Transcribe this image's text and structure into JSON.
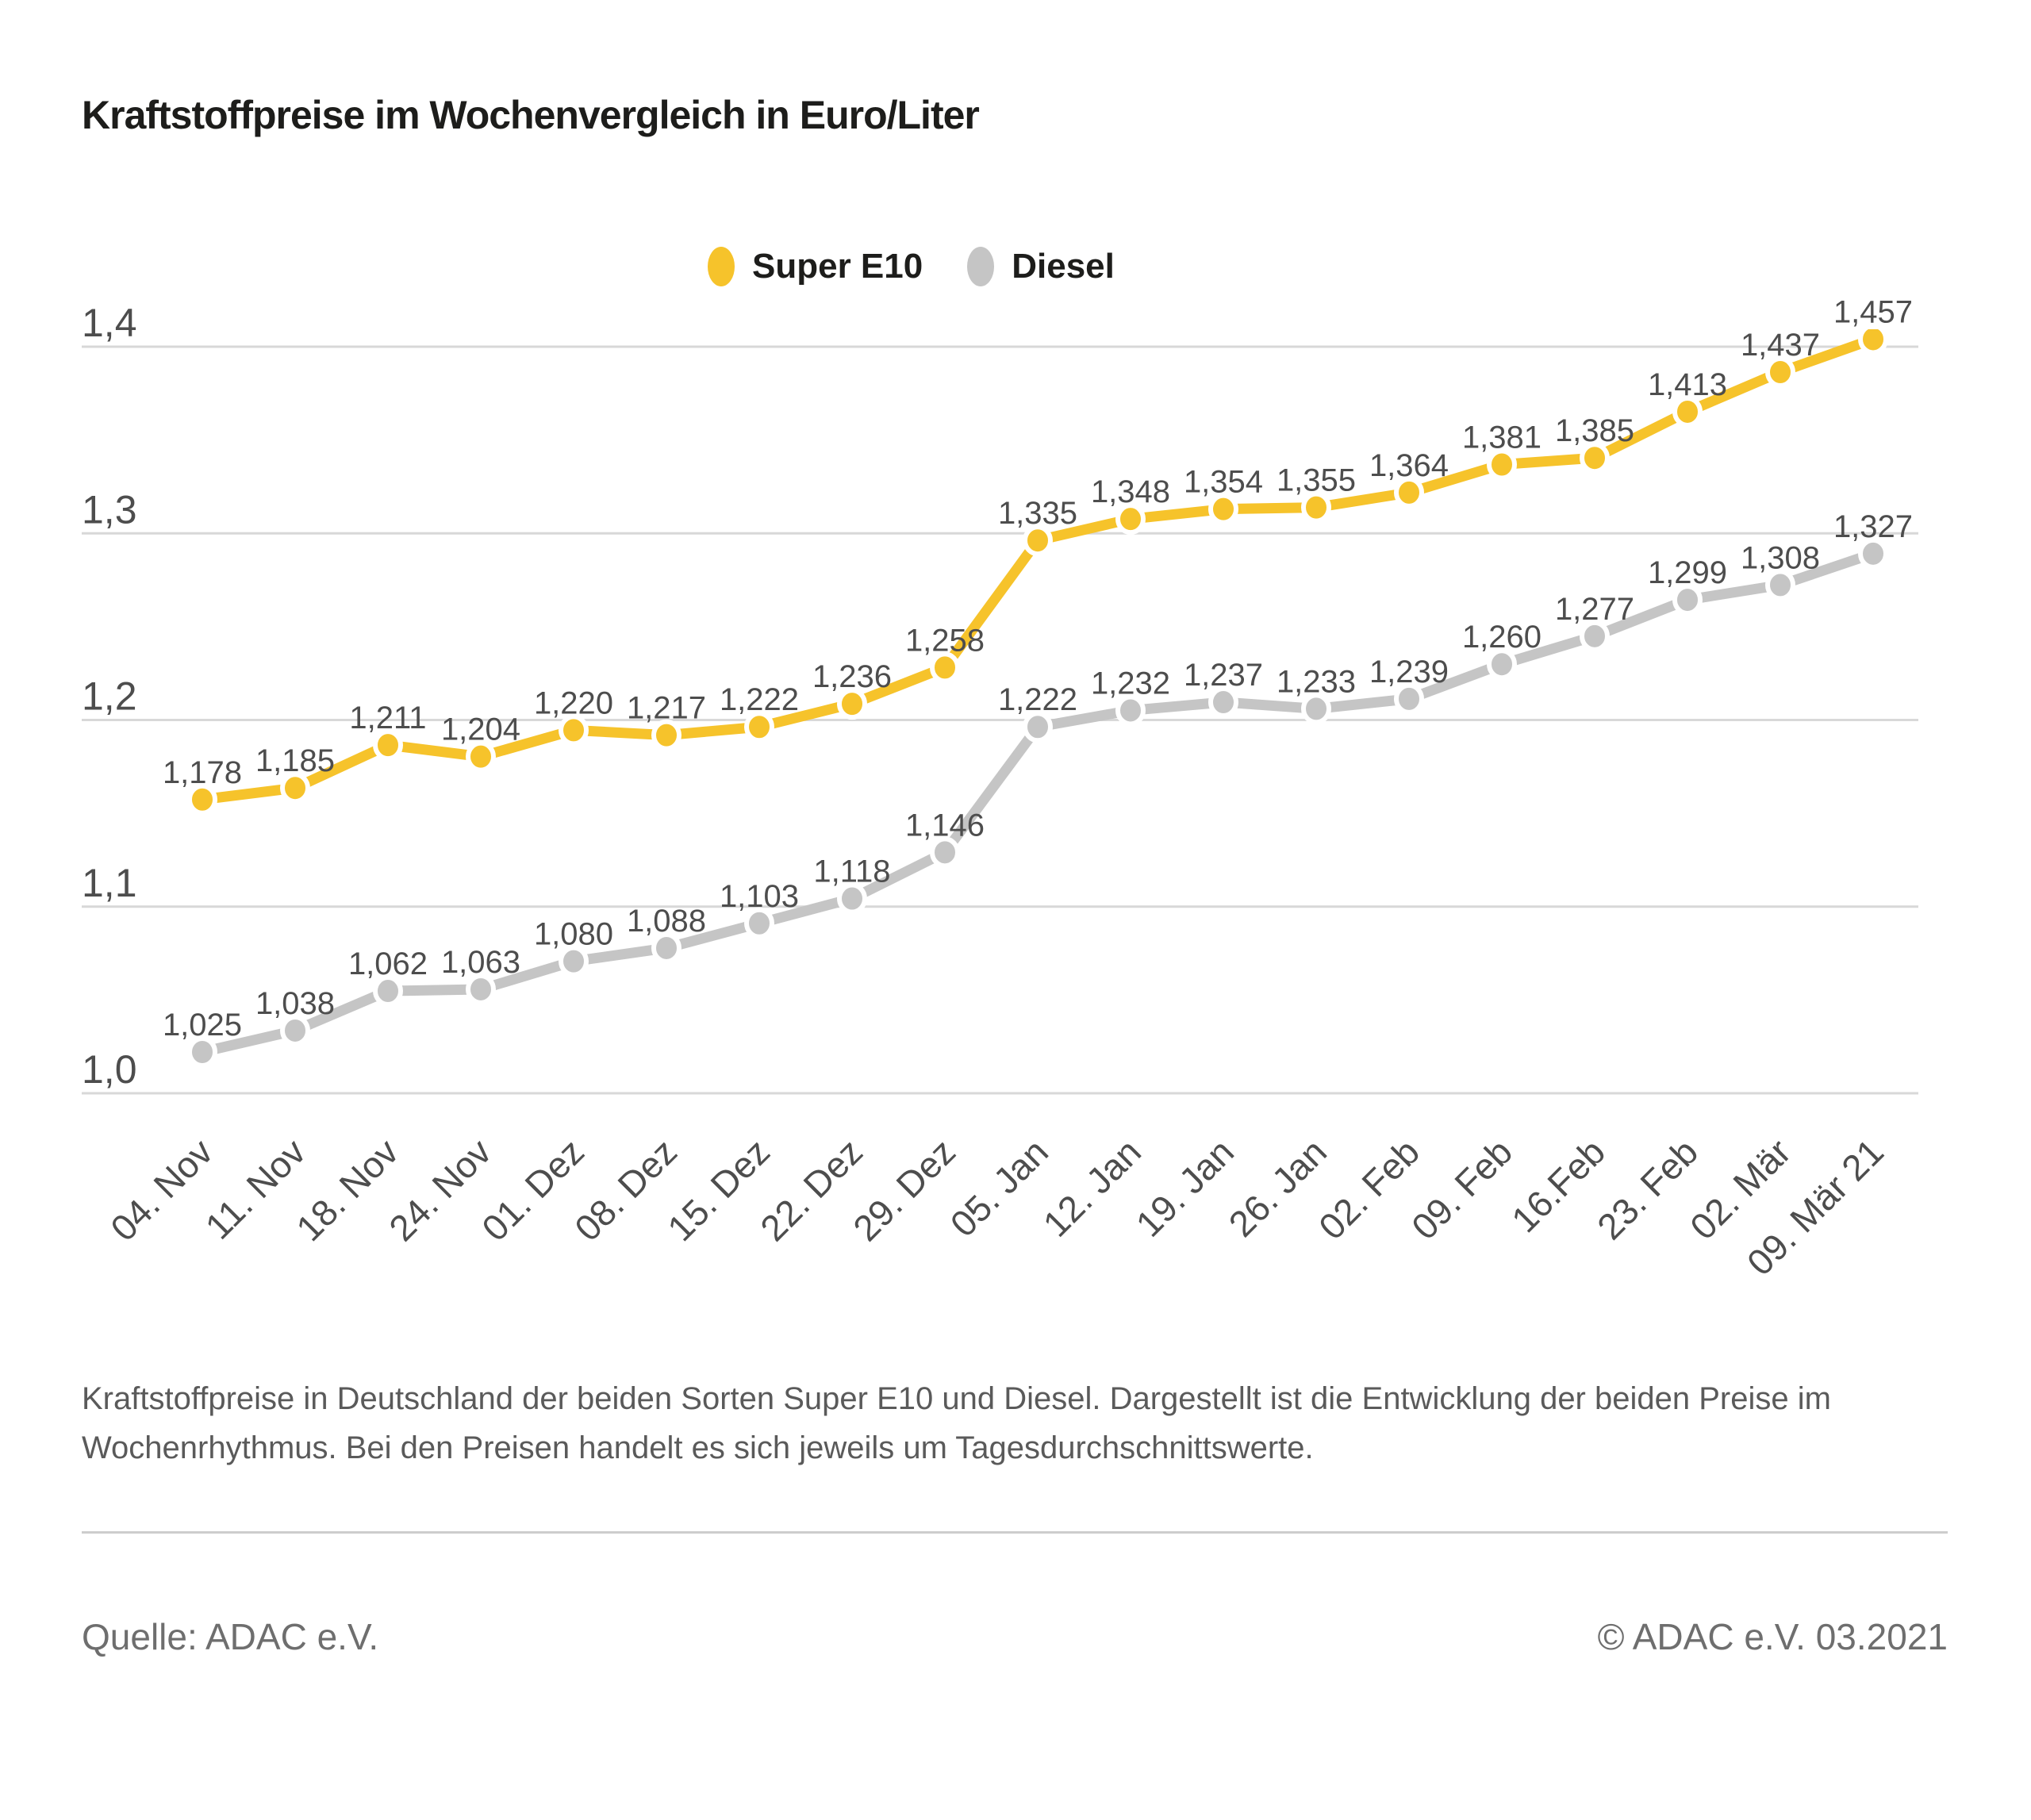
{
  "title": "Kraftstoffpreise im Wochenvergleich in Euro/Liter",
  "chart_data": {
    "type": "line",
    "title": "Kraftstoffpreise im Wochenvergleich in Euro/Liter",
    "unit": "Euro/Liter",
    "categories": [
      "04. Nov",
      "11. Nov",
      "18. Nov",
      "24. Nov",
      "01. Dez",
      "08. Dez",
      "15. Dez",
      "22. Dez",
      "29. Dez",
      "05. Jan",
      "12. Jan",
      "19. Jan",
      "26. Jan",
      "02. Feb",
      "09. Feb",
      "16.Feb",
      "23. Feb",
      "02. Mär",
      "09. Mär 21"
    ],
    "series": [
      {
        "name": "Super E10",
        "color": "#F6C32B",
        "values": [
          1.178,
          1.185,
          1.211,
          1.204,
          1.22,
          1.217,
          1.222,
          1.236,
          1.258,
          1.335,
          1.348,
          1.354,
          1.355,
          1.364,
          1.381,
          1.385,
          1.413,
          1.437,
          1.457
        ]
      },
      {
        "name": "Diesel",
        "color": "#C5C5C5",
        "values": [
          1.025,
          1.038,
          1.062,
          1.063,
          1.08,
          1.088,
          1.103,
          1.118,
          1.146,
          1.222,
          1.232,
          1.237,
          1.233,
          1.239,
          1.26,
          1.277,
          1.299,
          1.308,
          1.327
        ]
      }
    ],
    "yticks": {
      "values": [
        1.0,
        1.1,
        1.2,
        1.3,
        1.4
      ],
      "labels": [
        "1,0",
        "1,1",
        "1,2",
        "1,3",
        "1,4"
      ]
    },
    "ylim": [
      1.0,
      1.46
    ],
    "grid": true,
    "grid_color": "#D8D8D8",
    "label_color": "#4D4D4D",
    "legend_position": "top",
    "value_label_decimal": "comma"
  },
  "caption": {
    "line1": "Kraftstoffpreise in Deutschland der beiden Sorten Super E10 und Diesel. Dargestellt ist die Entwicklung der beiden Preise im",
    "line2": "Wochenrhythmus. Bei den Preisen handelt es sich jeweils um Tagesdurchschnittswerte."
  },
  "footer": {
    "source": "Quelle: ADAC e.V.",
    "copyright": "© ADAC e.V. 03.2021"
  }
}
